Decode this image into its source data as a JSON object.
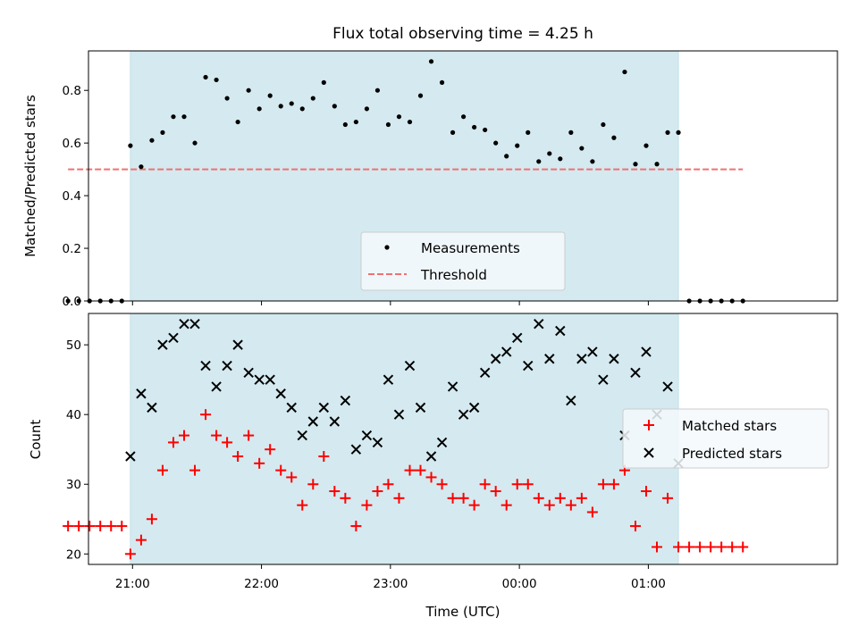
{
  "chart_data": [
    {
      "type": "scatter",
      "title": "Flux total observing time = 4.25 h",
      "xlabel": "",
      "ylabel": "Matched/Predicted stars",
      "ylim": [
        0,
        0.95
      ],
      "yticks": [
        0.0,
        0.2,
        0.4,
        0.6,
        0.8
      ],
      "ytick_labels": [
        "0.0",
        "0.2",
        "0.4",
        "0.6",
        "0.8"
      ],
      "xlim": [
        -20.5,
        328
      ],
      "xticks": [
        0,
        60,
        120,
        180,
        240
      ],
      "x_unit": "minutes after 21:00 UTC",
      "highlight_span": [
        -1,
        254
      ],
      "highlight_color": "#d4eaf0",
      "threshold": {
        "name": "Threshold",
        "value": 0.5,
        "x_range": [
          -30,
          284
        ],
        "color": "#f07070"
      },
      "series": [
        {
          "name": "Measurements",
          "color": "#000000",
          "x": [
            -30,
            -25,
            -20,
            -15,
            -10,
            -5,
            -1,
            4,
            9,
            14,
            19,
            24,
            29,
            34,
            39,
            44,
            49,
            54,
            59,
            64,
            69,
            74,
            79,
            84,
            89,
            94,
            99,
            104,
            109,
            114,
            119,
            124,
            129,
            134,
            139,
            144,
            149,
            154,
            159,
            164,
            169,
            174,
            179,
            184,
            189,
            194,
            199,
            204,
            209,
            214,
            219,
            224,
            229,
            234,
            239,
            244,
            249,
            254,
            259,
            264,
            269,
            274,
            279,
            284
          ],
          "y": [
            0,
            0,
            0,
            0,
            0,
            0,
            0.59,
            0.51,
            0.61,
            0.64,
            0.7,
            0.7,
            0.6,
            0.85,
            0.84,
            0.77,
            0.68,
            0.8,
            0.73,
            0.78,
            0.74,
            0.75,
            0.73,
            0.77,
            0.83,
            0.74,
            0.67,
            0.68,
            0.73,
            0.8,
            0.67,
            0.7,
            0.68,
            0.78,
            0.91,
            0.83,
            0.64,
            0.7,
            0.66,
            0.65,
            0.6,
            0.55,
            0.59,
            0.64,
            0.53,
            0.56,
            0.54,
            0.64,
            0.58,
            0.53,
            0.67,
            0.62,
            0.87,
            0.52,
            0.59,
            0.52,
            0.64,
            0.64,
            0,
            0,
            0,
            0,
            0,
            0
          ]
        }
      ],
      "legend_position": "lower center"
    },
    {
      "type": "scatter",
      "title": "",
      "xlabel": "Time (UTC)",
      "ylabel": "Count",
      "ylim": [
        18.5,
        54.5
      ],
      "yticks": [
        20,
        30,
        40,
        50
      ],
      "ytick_labels": [
        "20",
        "30",
        "40",
        "50"
      ],
      "xlim": [
        -20.5,
        328
      ],
      "xticks": [
        0,
        60,
        120,
        180,
        240
      ],
      "xtick_labels": [
        "21:00",
        "22:00",
        "23:00",
        "00:00",
        "01:00"
      ],
      "x_unit": "minutes after 21:00 UTC",
      "highlight_span": [
        -1,
        254
      ],
      "highlight_color": "#d4eaf0",
      "series": [
        {
          "name": "Matched stars",
          "marker": "plus",
          "color": "#ff0000",
          "x": [
            -30,
            -25,
            -20,
            -15,
            -10,
            -5,
            -1,
            4,
            9,
            14,
            19,
            24,
            29,
            34,
            39,
            44,
            49,
            54,
            59,
            64,
            69,
            74,
            79,
            84,
            89,
            94,
            99,
            104,
            109,
            114,
            119,
            124,
            129,
            134,
            139,
            144,
            149,
            154,
            159,
            164,
            169,
            174,
            179,
            184,
            189,
            194,
            199,
            204,
            209,
            214,
            219,
            224,
            229,
            234,
            239,
            244,
            249,
            254,
            259,
            264,
            269,
            274,
            279,
            284
          ],
          "y": [
            24,
            24,
            24,
            24,
            24,
            24,
            20,
            22,
            25,
            32,
            36,
            37,
            32,
            40,
            37,
            36,
            34,
            37,
            33,
            35,
            32,
            31,
            27,
            30,
            34,
            29,
            28,
            24,
            27,
            29,
            30,
            28,
            32,
            32,
            31,
            30,
            28,
            28,
            27,
            30,
            29,
            27,
            30,
            30,
            28,
            27,
            28,
            27,
            28,
            26,
            30,
            30,
            32,
            24,
            29,
            21,
            28,
            21,
            21,
            21,
            21,
            21,
            21,
            21
          ]
        },
        {
          "name": "Predicted stars",
          "marker": "x",
          "color": "#000000",
          "x": [
            -1,
            4,
            9,
            14,
            19,
            24,
            29,
            34,
            39,
            44,
            49,
            54,
            59,
            64,
            69,
            74,
            79,
            84,
            89,
            94,
            99,
            104,
            109,
            114,
            119,
            124,
            129,
            134,
            139,
            144,
            149,
            154,
            159,
            164,
            169,
            174,
            179,
            184,
            189,
            194,
            199,
            204,
            209,
            214,
            219,
            224,
            229,
            234,
            239,
            244,
            249,
            254
          ],
          "y": [
            34,
            43,
            41,
            50,
            51,
            53,
            53,
            47,
            44,
            47,
            50,
            46,
            45,
            45,
            43,
            41,
            37,
            39,
            41,
            39,
            42,
            35,
            37,
            36,
            45,
            40,
            47,
            41,
            34,
            36,
            44,
            40,
            41,
            46,
            48,
            49,
            51,
            47,
            53,
            48,
            52,
            42,
            48,
            49,
            45,
            48,
            37,
            46,
            49,
            40,
            44,
            33
          ]
        }
      ],
      "legend_position": "center right"
    }
  ]
}
